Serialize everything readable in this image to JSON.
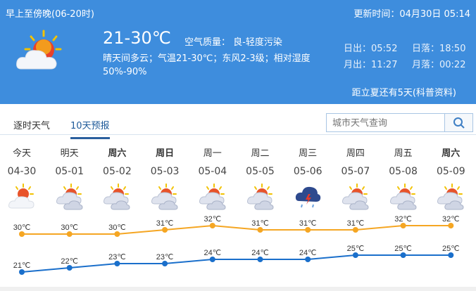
{
  "header": {
    "period": "早上至傍晚(06-20时)",
    "update": "更新时间：04月30日 05:14",
    "temp_range": "21-30℃",
    "air_quality": "空气质量：  良-轻度污染",
    "description": "晴天间多云；气温21-30℃；东风2-3级；相对湿度50%-90%",
    "sunrise": "日出：05:52",
    "sunset": "日落：18:50",
    "moonrise": "月出：11:27",
    "moonset": "月落：00:22",
    "summer_note": "距立夏还有5天(科普资料)",
    "icon": "sun-cloud-icon"
  },
  "tabs": [
    {
      "label": "逐时天气",
      "active": false
    },
    {
      "label": "10天预报",
      "active": true
    }
  ],
  "search": {
    "placeholder": "城市天气查询",
    "icon": "search-icon"
  },
  "forecast": [
    {
      "day": "今天",
      "date": "04-30",
      "icon": "sunny-cloud",
      "bold": false
    },
    {
      "day": "明天",
      "date": "05-01",
      "icon": "partly-cloudy",
      "bold": false
    },
    {
      "day": "周六",
      "date": "05-02",
      "icon": "partly-cloudy",
      "bold": true
    },
    {
      "day": "周日",
      "date": "05-03",
      "icon": "partly-cloudy",
      "bold": true
    },
    {
      "day": "周一",
      "date": "05-04",
      "icon": "partly-cloudy",
      "bold": false
    },
    {
      "day": "周二",
      "date": "05-05",
      "icon": "partly-cloudy",
      "bold": false
    },
    {
      "day": "周三",
      "date": "05-06",
      "icon": "thunderstorm",
      "bold": false
    },
    {
      "day": "周四",
      "date": "05-07",
      "icon": "partly-cloudy",
      "bold": false
    },
    {
      "day": "周五",
      "date": "05-08",
      "icon": "partly-cloudy",
      "bold": false
    },
    {
      "day": "周六",
      "date": "05-09",
      "icon": "partly-cloudy",
      "bold": true
    }
  ],
  "chart_data": {
    "type": "line",
    "categories": [
      "04-30",
      "05-01",
      "05-02",
      "05-03",
      "05-04",
      "05-05",
      "05-06",
      "05-07",
      "05-08",
      "05-09"
    ],
    "unit": "℃",
    "series": [
      {
        "values": [
          30,
          30,
          30,
          31,
          32,
          31,
          31,
          31,
          32,
          32
        ],
        "color": "#f5a623"
      },
      {
        "values": [
          21,
          22,
          23,
          23,
          24,
          24,
          24,
          25,
          25,
          25
        ],
        "color": "#1a6fcb"
      }
    ]
  }
}
